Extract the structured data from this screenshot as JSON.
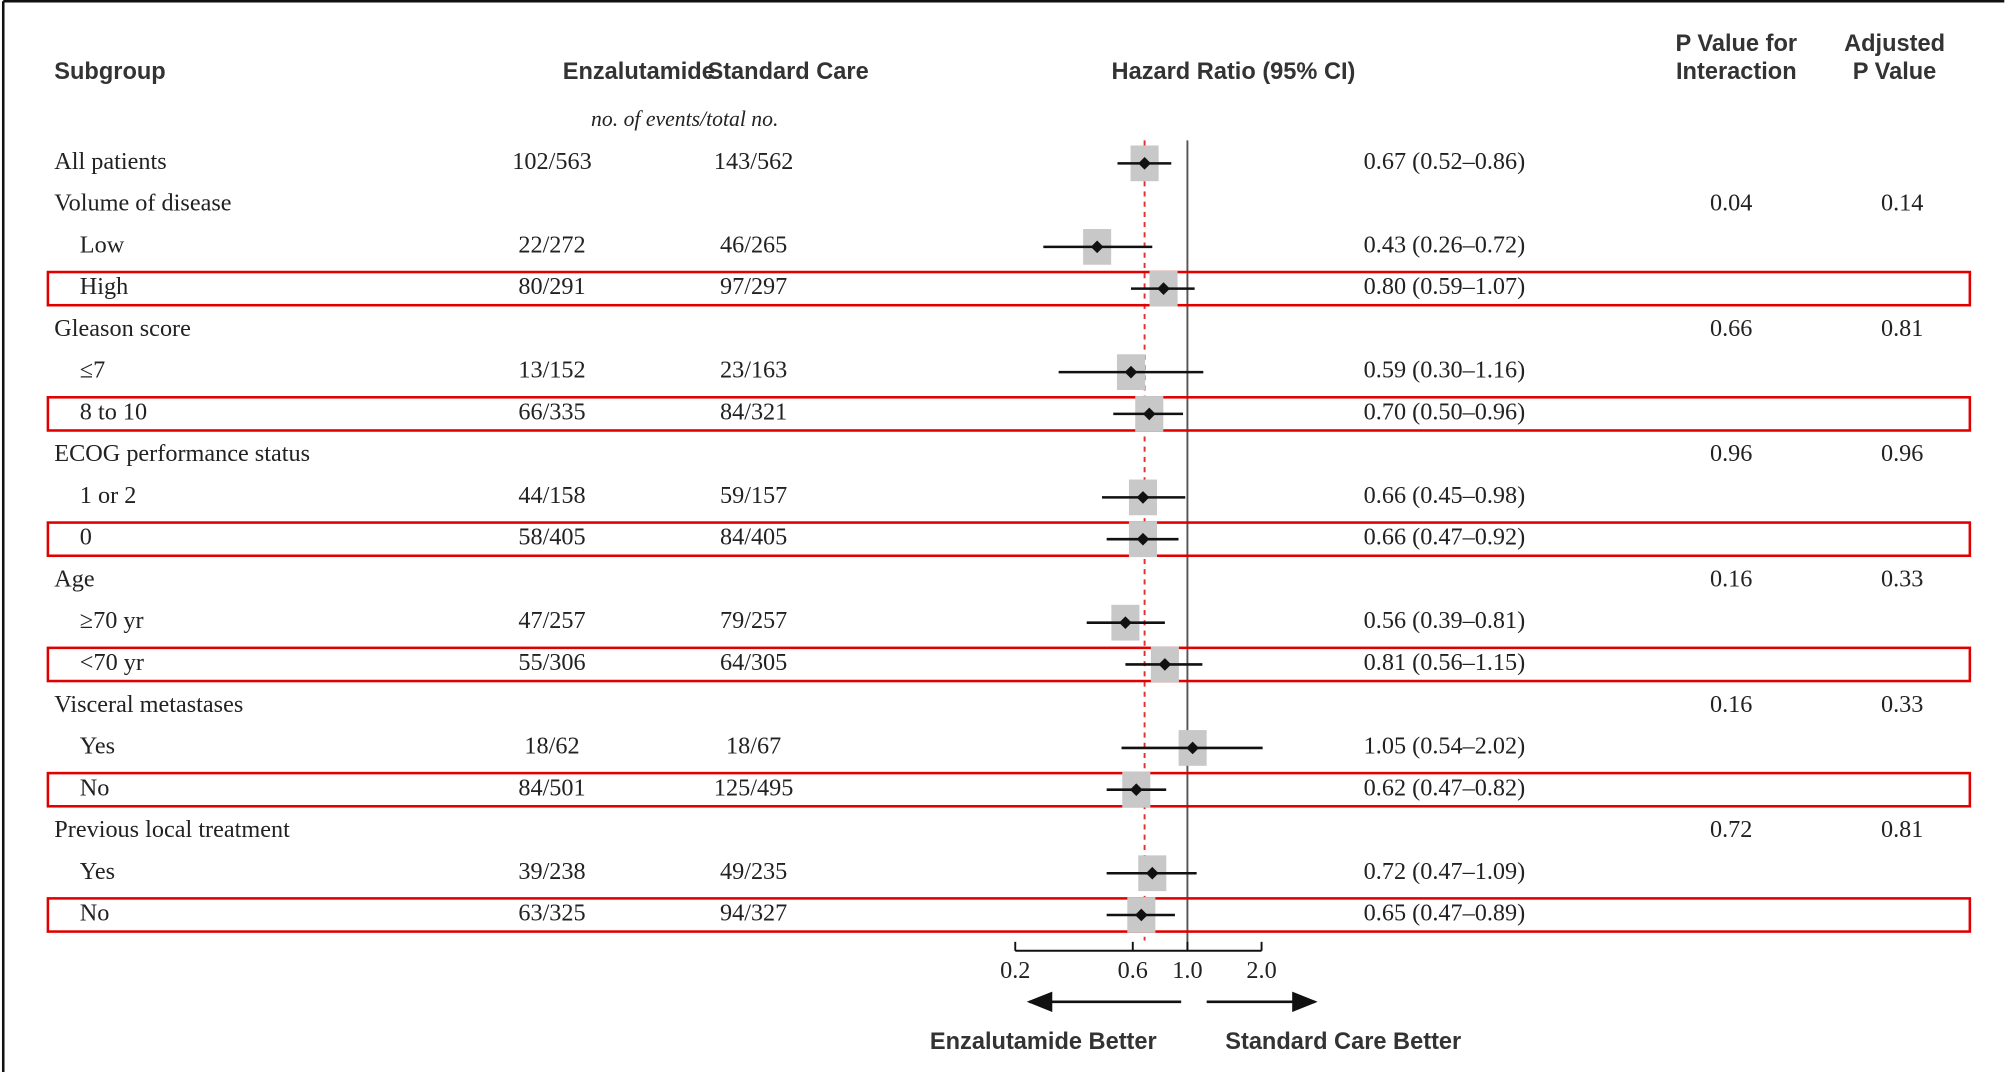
{
  "chart_data": {
    "type": "forest",
    "log_scale": true,
    "xlim": [
      0.2,
      2.0
    ],
    "xticks": [
      0.2,
      0.6,
      {
        "value": 1,
        "label": "1.0"
      },
      {
        "value": 2,
        "label": "2.0"
      }
    ],
    "point_color": "#111111",
    "box_color": "#c8c8c8",
    "reference_color": "#e03030",
    "highlight_color": "#e00000",
    "columns": {
      "subgroup": "Subgroup",
      "enzalutamide": "Enzalutamide",
      "standard_care": "Standard Care",
      "hazard_ratio": "Hazard Ratio (95% CI)",
      "p_interaction": [
        "P Value for",
        "Interaction"
      ],
      "p_adjusted": [
        "Adjusted",
        "P Value"
      ]
    },
    "subheader": "no. of events/total no.",
    "axis_labels": {
      "left": "Enzalutamide Better",
      "right": "Standard Care Better"
    },
    "overall": {
      "label": "All patients",
      "enzalutamide": "102/563",
      "standard_care": "143/562",
      "hr": 0.67,
      "ci": [
        0.52,
        0.86
      ],
      "value_label": "0.67 (0.52–0.86)"
    },
    "groups": [
      {
        "label": "Volume of disease",
        "p_interaction": 0.04,
        "p_adjusted": 0.14,
        "rows": [
          {
            "label": "Low",
            "enzalutamide": "22/272",
            "standard_care": "46/265",
            "hr": 0.43,
            "ci": [
              0.26,
              0.72
            ],
            "value_label": "0.43 (0.26–0.72)"
          },
          {
            "label": "High",
            "enzalutamide": "80/291",
            "standard_care": "97/297",
            "hr": 0.8,
            "ci": [
              0.59,
              1.07
            ],
            "value_label": "0.80 (0.59–1.07)",
            "highlight": true
          }
        ]
      },
      {
        "label": "Gleason score",
        "p_interaction": 0.66,
        "p_adjusted": 0.81,
        "rows": [
          {
            "label": "≤7",
            "enzalutamide": "13/152",
            "standard_care": "23/163",
            "hr": 0.59,
            "ci": [
              0.3,
              1.16
            ],
            "value_label": "0.59 (0.30–1.16)"
          },
          {
            "label": "8 to 10",
            "enzalutamide": "66/335",
            "standard_care": "84/321",
            "hr": 0.7,
            "ci": [
              0.5,
              0.96
            ],
            "value_label": "0.70 (0.50–0.96)",
            "highlight": true
          }
        ]
      },
      {
        "label": "ECOG performance status",
        "p_interaction": 0.96,
        "p_adjusted": 0.96,
        "rows": [
          {
            "label": "1 or 2",
            "enzalutamide": "44/158",
            "standard_care": "59/157",
            "hr": 0.66,
            "ci": [
              0.45,
              0.98
            ],
            "value_label": "0.66 (0.45–0.98)"
          },
          {
            "label": "0",
            "enzalutamide": "58/405",
            "standard_care": "84/405",
            "hr": 0.66,
            "ci": [
              0.47,
              0.92
            ],
            "value_label": "0.66 (0.47–0.92)",
            "highlight": true
          }
        ]
      },
      {
        "label": "Age",
        "p_interaction": 0.16,
        "p_adjusted": 0.33,
        "rows": [
          {
            "label": "≥70 yr",
            "enzalutamide": "47/257",
            "standard_care": "79/257",
            "hr": 0.56,
            "ci": [
              0.39,
              0.81
            ],
            "value_label": "0.56 (0.39–0.81)"
          },
          {
            "label": "<70 yr",
            "enzalutamide": "55/306",
            "standard_care": "64/305",
            "hr": 0.81,
            "ci": [
              0.56,
              1.15
            ],
            "value_label": "0.81 (0.56–1.15)",
            "highlight": true
          }
        ]
      },
      {
        "label": "Visceral metastases",
        "p_interaction": 0.16,
        "p_adjusted": 0.33,
        "rows": [
          {
            "label": "Yes",
            "enzalutamide": "18/62",
            "standard_care": "18/67",
            "hr": 1.05,
            "ci": [
              0.54,
              2.02
            ],
            "value_label": "1.05 (0.54–2.02)"
          },
          {
            "label": "No",
            "enzalutamide": "84/501",
            "standard_care": "125/495",
            "hr": 0.62,
            "ci": [
              0.47,
              0.82
            ],
            "value_label": "0.62 (0.47–0.82)",
            "highlight": true
          }
        ]
      },
      {
        "label": "Previous local treatment",
        "p_interaction": 0.72,
        "p_adjusted": 0.81,
        "rows": [
          {
            "label": "Yes",
            "enzalutamide": "39/238",
            "standard_care": "49/235",
            "hr": 0.72,
            "ci": [
              0.47,
              1.09
            ],
            "value_label": "0.72 (0.47–1.09)"
          },
          {
            "label": "No",
            "enzalutamide": "63/325",
            "standard_care": "94/327",
            "hr": 0.65,
            "ci": [
              0.47,
              0.89
            ],
            "value_label": "0.65 (0.47–0.89)",
            "highlight": true
          }
        ]
      }
    ]
  }
}
